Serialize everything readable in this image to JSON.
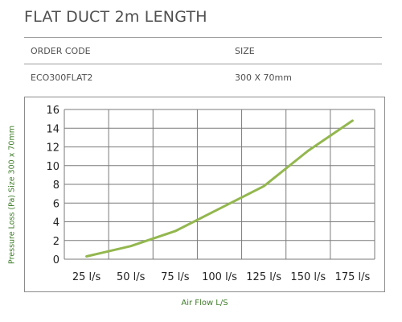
{
  "header": {
    "title": "FLAT DUCT 2m LENGTH"
  },
  "spec_table": {
    "headers": [
      "ORDER CODE",
      "SIZE"
    ],
    "rows": [
      [
        "ECO300FLAT2",
        "300 X 70mm"
      ]
    ]
  },
  "colors": {
    "line": "#93b74e",
    "axis_text": "#222222",
    "label_text": "#3f7d2a",
    "grid": "#7a7a7a"
  },
  "chart_data": {
    "type": "line",
    "title": "",
    "xlabel": "Air Flow L/S",
    "ylabel": "Pressure Loss (Pa) Size 300 x 70mm",
    "categories": [
      "25 l/s",
      "50 l/s",
      "75 l/s",
      "100 l/s",
      "125 l/s",
      "150 l/s",
      "175 l/s"
    ],
    "x": [
      25,
      50,
      75,
      100,
      125,
      150,
      175
    ],
    "xlim": [
      12.5,
      187.5
    ],
    "ylim": [
      0,
      16
    ],
    "yticks": [
      0,
      2,
      4,
      6,
      8,
      10,
      12,
      14,
      16
    ],
    "grid": true,
    "legend": "none",
    "series": [
      {
        "x": [
          25,
          50,
          75,
          100,
          125,
          150,
          175
        ],
        "values": [
          0.3,
          1.4,
          3.0,
          5.4,
          7.8,
          11.6,
          14.8
        ]
      }
    ]
  }
}
